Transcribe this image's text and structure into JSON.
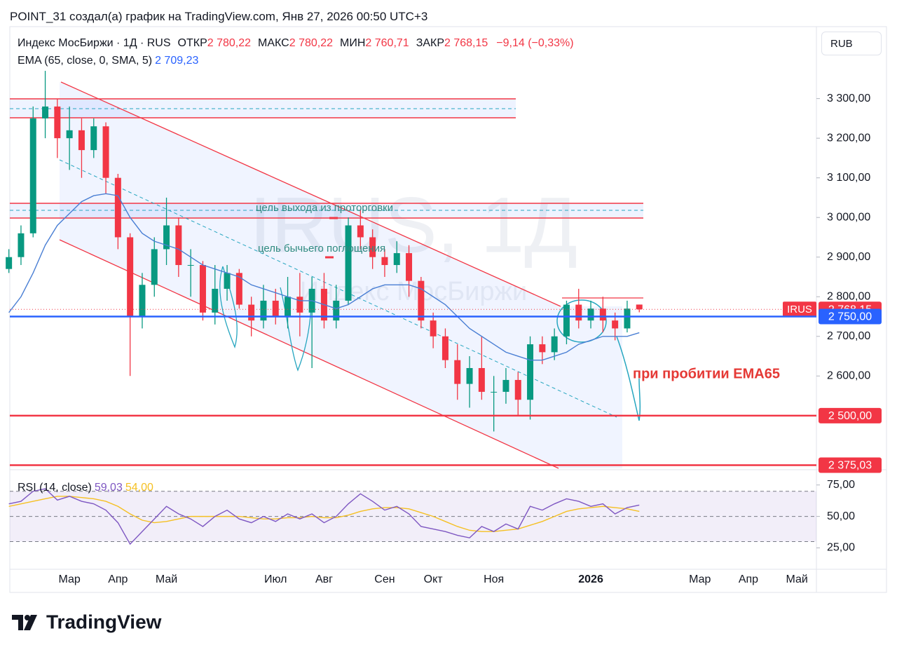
{
  "page": {
    "attribution": "POINT_31 создал(а) график на TradingView.com, Янв 27, 2026 00:50 UTC+3",
    "brand": "TradingView"
  },
  "chart_data": {
    "type": "candlestick",
    "symbol": "Индекс МосБиржи · 1Д · RUS",
    "ohlc_legend": [
      {
        "label": "ОТКР",
        "value": "2 780,22"
      },
      {
        "label": "МАКС",
        "value": "2 780,22"
      },
      {
        "label": "МИН",
        "value": "2 760,71"
      },
      {
        "label": "ЗАКР",
        "value": "2 768,15"
      }
    ],
    "change": "−9,14 (−0,33%)",
    "currency": "RUB",
    "watermark": [
      "IRUS, 1Д",
      "Индекс МосБиржи"
    ],
    "categories": [
      null,
      null,
      null,
      null,
      null,
      "Мар",
      null,
      null,
      null,
      "Апр",
      null,
      null,
      null,
      "Май",
      null,
      null,
      null,
      null,
      null,
      null,
      null,
      null,
      "Июл",
      null,
      null,
      null,
      "Авг",
      null,
      null,
      null,
      null,
      "Сен",
      null,
      null,
      null,
      "Окт",
      null,
      null,
      null,
      null,
      "Ноя",
      null,
      null,
      null,
      null,
      null,
      null,
      null,
      "2026",
      null,
      null,
      null,
      null,
      null,
      null,
      null,
      null,
      "Мар",
      null,
      null,
      null,
      "Апр",
      null,
      null,
      null,
      "Май",
      null
    ],
    "open": [
      2870,
      2900,
      2960,
      3250,
      3280,
      3200,
      3220,
      3170,
      3230,
      3100,
      2950,
      2750,
      2830,
      2920,
      2980,
      2880,
      2880,
      2760,
      2820,
      2860,
      2780,
      2740,
      2790,
      2750,
      2800,
      2760,
      2820,
      2740,
      2790,
      2980,
      2950,
      2900,
      2880,
      2910,
      2840,
      2740,
      2700,
      2640,
      2580,
      2620,
      2560,
      2560,
      2590,
      2540,
      2680,
      2660,
      2700,
      2780,
      2740,
      2770,
      2740,
      2720,
      2780.22,
      null,
      null,
      null,
      null,
      null,
      null,
      null,
      null,
      null,
      null,
      null,
      null,
      null,
      null
    ],
    "high": [
      2920,
      2980,
      3280,
      3370,
      3300,
      3280,
      3250,
      3250,
      3240,
      3110,
      2960,
      2860,
      2950,
      3050,
      3000,
      2920,
      2890,
      2880,
      2880,
      2870,
      2800,
      2830,
      2820,
      2850,
      2860,
      2850,
      2860,
      2830,
      3000,
      3020,
      2970,
      2920,
      2940,
      2930,
      2850,
      2760,
      2720,
      2680,
      2650,
      2700,
      2600,
      2620,
      2610,
      2700,
      2700,
      2720,
      2790,
      2820,
      2790,
      2800,
      2760,
      2790,
      2780.22,
      null,
      null,
      null,
      null,
      null,
      null,
      null,
      null,
      null,
      null,
      null,
      null,
      null,
      null
    ],
    "low": [
      2860,
      2880,
      2950,
      3200,
      3150,
      3120,
      3100,
      3150,
      3060,
      2920,
      2600,
      2720,
      2800,
      2880,
      2850,
      2800,
      2740,
      2730,
      2790,
      2770,
      2700,
      2720,
      2730,
      2720,
      2700,
      2620,
      2720,
      2720,
      2780,
      2920,
      2870,
      2850,
      2860,
      2800,
      2720,
      2670,
      2620,
      2540,
      2520,
      2540,
      2460,
      2530,
      2500,
      2490,
      2630,
      2640,
      2680,
      2720,
      2720,
      2710,
      2690,
      2710,
      2760.71,
      null,
      null,
      null,
      null,
      null,
      null,
      null,
      null,
      null,
      null,
      null,
      null,
      null,
      null
    ],
    "close": [
      2900,
      2960,
      3250,
      3280,
      3200,
      3220,
      3170,
      3230,
      3100,
      2950,
      2750,
      2830,
      2920,
      2980,
      2880,
      2880,
      2760,
      2820,
      2860,
      2780,
      2740,
      2790,
      2750,
      2800,
      2760,
      2820,
      2740,
      2790,
      2980,
      2950,
      2900,
      2880,
      2910,
      2840,
      2740,
      2700,
      2640,
      2580,
      2620,
      2560,
      2560,
      2590,
      2540,
      2680,
      2660,
      2700,
      2780,
      2740,
      2770,
      2740,
      2720,
      2770,
      2768.15,
      null,
      null,
      null,
      null,
      null,
      null,
      null,
      null,
      null,
      null,
      null,
      null,
      null,
      null
    ],
    "up_color": "#089981",
    "down_color": "#f23645",
    "ylim": [
      2367,
      3478
    ],
    "yticks": [
      {
        "value": 2600,
        "label": "2 600,00"
      },
      {
        "value": 2700,
        "label": "2 700,00"
      },
      {
        "value": 2800,
        "label": "2 800,00"
      },
      {
        "value": 2900,
        "label": "2 900,00"
      },
      {
        "value": 3000,
        "label": "3 000,00"
      },
      {
        "value": 3100,
        "label": "3 100,00"
      },
      {
        "value": 3200,
        "label": "3 200,00"
      },
      {
        "value": 3300,
        "label": "3 300,00"
      }
    ],
    "ema": {
      "name": "EMA (65, close, 0, SMA, 5)",
      "value_label": "2 709,23",
      "color": "#4a7fd4",
      "values": [
        2760,
        2800,
        2860,
        2930,
        2980,
        3010,
        3040,
        3055,
        3060,
        3055,
        3000,
        2960,
        2940,
        2930,
        2920,
        2900,
        2880,
        2870,
        2860,
        2850,
        2830,
        2820,
        2810,
        2800,
        2790,
        2790,
        2780,
        2770,
        2780,
        2800,
        2820,
        2830,
        2830,
        2830,
        2820,
        2800,
        2780,
        2750,
        2720,
        2700,
        2680,
        2660,
        2650,
        2640,
        2640,
        2650,
        2660,
        2680,
        2690,
        2700,
        2700,
        2700,
        2709.23,
        null,
        null,
        null,
        null,
        null,
        null,
        null,
        null,
        null,
        null,
        null,
        null,
        null,
        null
      ]
    },
    "levels": [
      {
        "value": 2768.15,
        "label": "2 768,15",
        "tag": "IRUS",
        "color": "#f23645",
        "style": "dotted"
      },
      {
        "value": 2750,
        "label": "2 750,00",
        "color": "#2962ff",
        "style": "solid"
      },
      {
        "value": 2500,
        "label": "2 500,00",
        "color": "#f23645",
        "style": "solid"
      },
      {
        "value": 2375.03,
        "label": "2 375,03",
        "color": "#f23645",
        "style": "solid"
      }
    ],
    "annotations": [
      "цель выхода из проторговки",
      "цель бычьего поглощения",
      "при пробитии EMA65"
    ],
    "rsi": {
      "name": "RSI (14, close)",
      "ylim": [
        8,
        86
      ],
      "yticks": [
        {
          "value": 25,
          "label": "25,00"
        },
        {
          "value": 50,
          "label": "50,00"
        },
        {
          "value": 75,
          "label": "75,00"
        }
      ],
      "bands": [
        30,
        50,
        70
      ],
      "series": [
        {
          "name": "RSI",
          "value_label": "59,03",
          "color": "#7e57c2",
          "values": [
            60,
            62,
            70,
            72,
            63,
            66,
            62,
            60,
            55,
            45,
            28,
            38,
            48,
            58,
            52,
            48,
            42,
            50,
            55,
            48,
            45,
            50,
            46,
            52,
            48,
            52,
            45,
            50,
            60,
            68,
            62,
            55,
            58,
            52,
            42,
            40,
            38,
            35,
            33,
            42,
            38,
            44,
            40,
            58,
            55,
            60,
            64,
            62,
            58,
            60,
            52,
            57,
            59.03,
            null,
            null,
            null,
            null,
            null,
            null,
            null,
            null,
            null,
            null,
            null,
            null,
            null,
            null
          ]
        },
        {
          "name": "MA",
          "value_label": "54,00",
          "color": "#f5c023",
          "values": [
            58,
            60,
            62,
            64,
            66,
            66,
            65,
            64,
            62,
            58,
            52,
            47,
            45,
            46,
            48,
            50,
            50,
            50,
            50,
            50,
            49,
            48,
            48,
            49,
            49,
            50,
            49,
            49,
            51,
            54,
            56,
            57,
            57,
            56,
            53,
            50,
            46,
            42,
            39,
            38,
            38,
            39,
            40,
            43,
            46,
            50,
            54,
            56,
            57,
            58,
            57,
            56,
            54,
            null,
            null,
            null,
            null,
            null,
            null,
            null,
            null,
            null,
            null,
            null,
            null,
            null,
            null
          ]
        }
      ]
    }
  }
}
